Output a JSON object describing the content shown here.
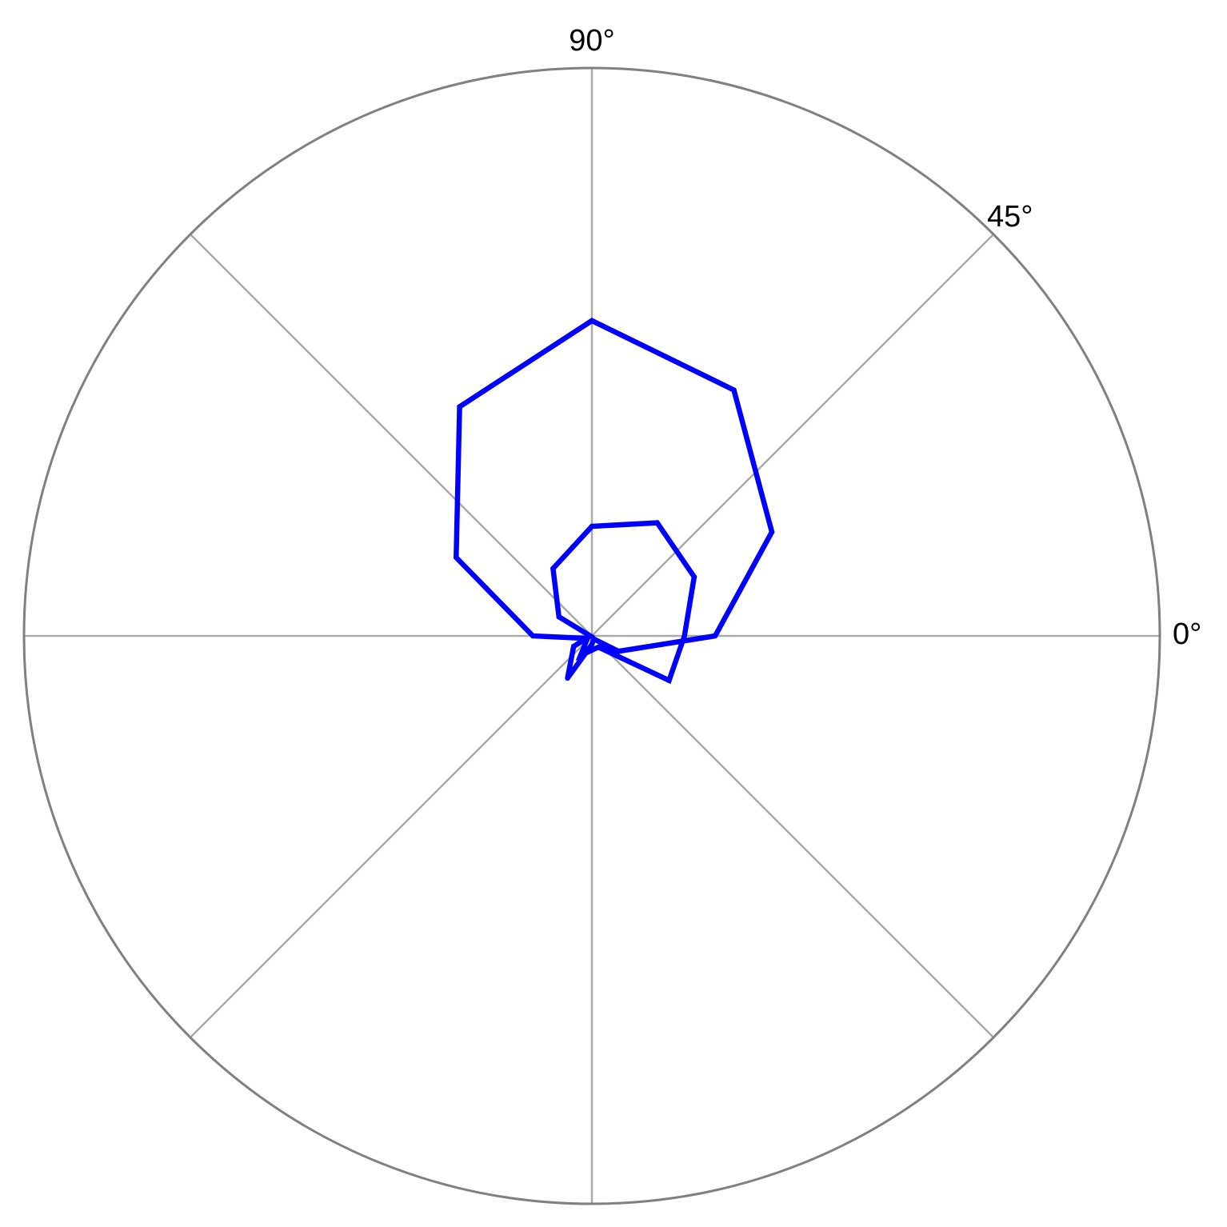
{
  "chart_data": {
    "type": "line",
    "subtype": "polar",
    "title": "",
    "theta_tick_labels": [
      {
        "angle": 0,
        "label": "0°"
      },
      {
        "angle": 45,
        "label": "45°"
      },
      {
        "angle": 90,
        "label": "90°"
      }
    ],
    "spoke_angles": [
      0,
      45,
      90,
      135,
      180,
      225,
      270,
      315
    ],
    "rmax": 1.0,
    "grid": true,
    "radial_tick_labels": false,
    "series": [
      {
        "theta_deg": [
          0,
          30,
          60,
          90,
          120,
          150,
          180,
          210,
          240,
          270,
          300,
          330,
          0,
          30,
          60,
          90,
          120,
          150,
          180,
          210,
          240,
          270,
          300,
          330,
          0
        ],
        "r": [
          0.217,
          0.366,
          0.5,
          0.555,
          0.466,
          0.276,
          0.104,
          0.009,
          0.04,
          0.025,
          0.023,
          0.157,
          0.163,
          0.208,
          0.23,
          0.193,
          0.137,
          0.067,
          0.003,
          0.037,
          0.086,
          0.015,
          0.006,
          0.054,
          0.217
        ],
        "color": "#0000ff"
      }
    ],
    "colors": {
      "outer_circle": "#808080",
      "spokes": "#aaaaaa",
      "line": "#0000ff",
      "text": "#000000"
    }
  }
}
